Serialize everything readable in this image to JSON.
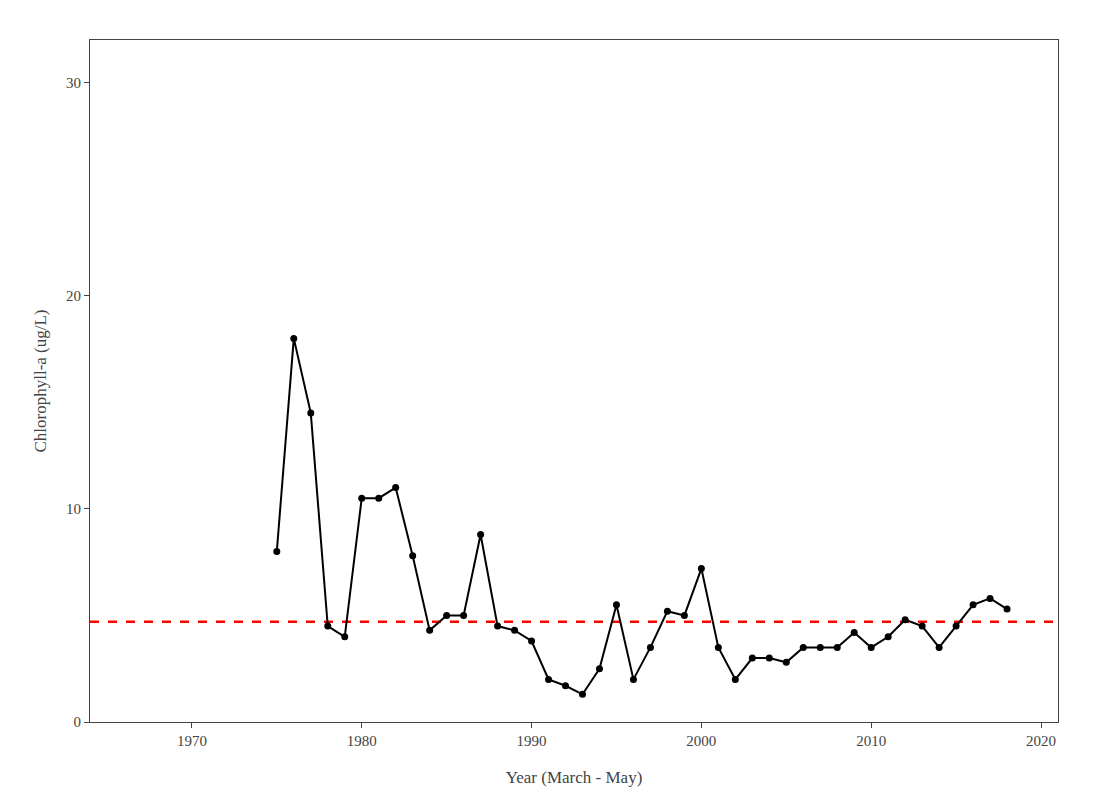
{
  "chart_data": {
    "type": "line",
    "x": [
      1975,
      1976,
      1977,
      1978,
      1979,
      1980,
      1981,
      1982,
      1983,
      1984,
      1985,
      1986,
      1987,
      1988,
      1989,
      1990,
      1991,
      1992,
      1993,
      1994,
      1995,
      1996,
      1997,
      1998,
      1999,
      2000,
      2001,
      2002,
      2003,
      2004,
      2005,
      2006,
      2007,
      2008,
      2009,
      2010,
      2011,
      2012,
      2013,
      2014,
      2015,
      2016,
      2017,
      2018
    ],
    "values": [
      8.0,
      18.0,
      14.5,
      4.5,
      4.0,
      10.5,
      10.5,
      11.0,
      7.8,
      4.3,
      5.0,
      5.0,
      8.8,
      4.5,
      4.3,
      3.8,
      2.0,
      1.7,
      1.3,
      2.5,
      5.5,
      2.0,
      3.5,
      5.2,
      5.0,
      7.2,
      3.5,
      2.0,
      3.0,
      3.0,
      2.8,
      3.5,
      3.5,
      3.5,
      4.2,
      3.5,
      4.0,
      4.8,
      4.5,
      3.5,
      4.5,
      5.5,
      5.8,
      5.3
    ],
    "color": "#000000",
    "marker": "circle",
    "line_style": "solid",
    "hline": {
      "value": 4.7,
      "color": "#FF0000",
      "line_style": "dash"
    },
    "xlabel": "Year (March - May)",
    "ylabel": "Chlorophyll-a (ug/L)",
    "xlim": [
      1964,
      2021
    ],
    "ylim": [
      0,
      32
    ],
    "xticks": [
      1970,
      1980,
      1990,
      2000,
      2010,
      2020
    ],
    "yticks": [
      0,
      10,
      20,
      30
    ],
    "grid": false
  }
}
